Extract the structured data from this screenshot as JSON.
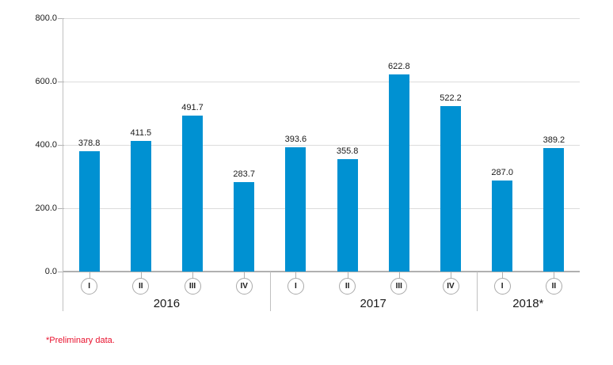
{
  "chart_data": {
    "type": "bar",
    "title": "",
    "xlabel": "",
    "ylabel": "",
    "ylim": [
      0,
      800
    ],
    "yticks": [
      0,
      200,
      400,
      600,
      800
    ],
    "ytick_labels": [
      "0.0",
      "200.0",
      "400.0",
      "600.0",
      "800.0"
    ],
    "grid": true,
    "legend": false,
    "bar_color": "#0091d2",
    "groups": [
      {
        "year_label": "2016",
        "quarters": [
          "I",
          "II",
          "III",
          "IV"
        ],
        "values": [
          378.8,
          411.5,
          491.7,
          283.7
        ],
        "value_labels": [
          "378.8",
          "411.5",
          "491.7",
          "283.7"
        ]
      },
      {
        "year_label": "2017",
        "quarters": [
          "I",
          "II",
          "III",
          "IV"
        ],
        "values": [
          393.6,
          355.8,
          622.8,
          522.2
        ],
        "value_labels": [
          "393.6",
          "355.8",
          "622.8",
          "522.2"
        ]
      },
      {
        "year_label": "2018*",
        "quarters": [
          "I",
          "II"
        ],
        "values": [
          287.0,
          389.2
        ],
        "value_labels": [
          "287.0",
          "389.2"
        ]
      }
    ]
  },
  "footnote": "*Preliminary data.",
  "colors": {
    "bar": "#0091d2",
    "gridline": "#dcdcdc",
    "axis": "#b0b0b0",
    "footnote_text": "#e8112d",
    "text": "#1a1a1a"
  }
}
